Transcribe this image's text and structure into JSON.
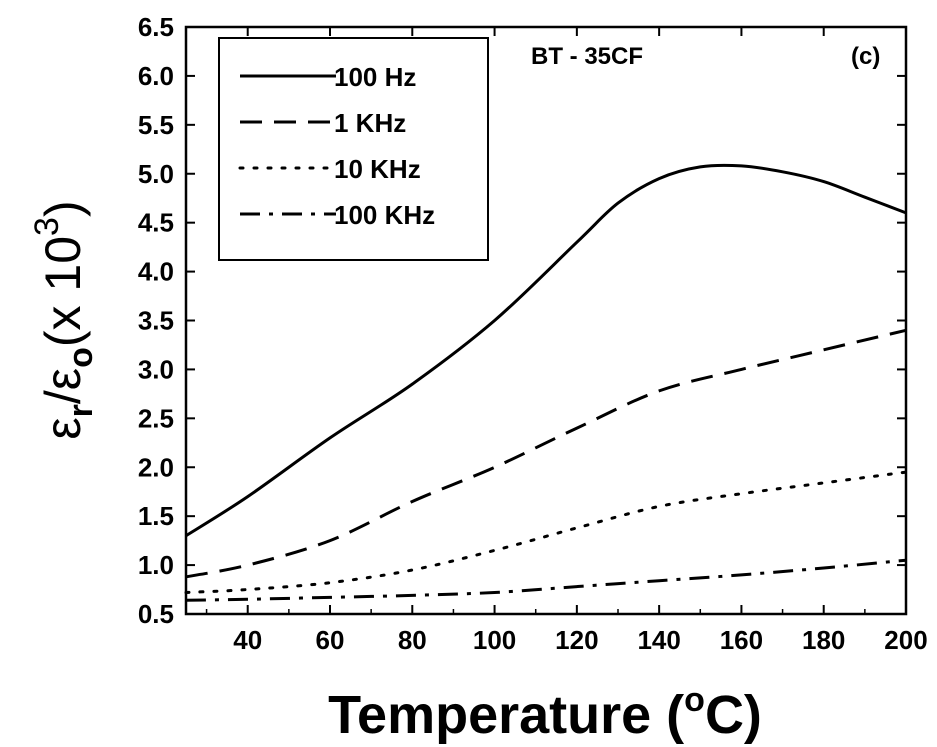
{
  "chart_data": {
    "type": "line",
    "xlabel": {
      "prefix": "Temperature (",
      "sup": "o",
      "suffix": "C)"
    },
    "ylabel": {
      "eps1": "ε",
      "sub1": "r",
      "slash": "/",
      "eps2": "ε",
      "sub2": "o",
      "rest": "(x 10",
      "sup": "3",
      "close": ")"
    },
    "xlim": [
      25,
      200
    ],
    "ylim": [
      0.5,
      6.5
    ],
    "xticks": [
      40,
      60,
      80,
      100,
      120,
      140,
      160,
      180,
      200
    ],
    "yticks": [
      "0.5",
      "1.0",
      "1.5",
      "2.0",
      "2.5",
      "3.0",
      "3.5",
      "4.0",
      "4.5",
      "5.0",
      "5.5",
      "6.0",
      "6.5"
    ],
    "annotations": {
      "sample": "BT - 35CF",
      "panel": "(c)"
    },
    "legend_position": "top-left",
    "grid": false,
    "series": [
      {
        "name": "100 Hz",
        "style": "solid",
        "x": [
          25,
          40,
          60,
          80,
          100,
          120,
          130,
          140,
          150,
          160,
          170,
          180,
          190,
          200
        ],
        "y": [
          1.3,
          1.7,
          2.3,
          2.85,
          3.5,
          4.3,
          4.7,
          4.95,
          5.07,
          5.08,
          5.02,
          4.92,
          4.76,
          4.6
        ]
      },
      {
        "name": "1 KHz",
        "style": "dashed",
        "x": [
          25,
          40,
          60,
          80,
          100,
          120,
          140,
          160,
          180,
          200
        ],
        "y": [
          0.88,
          1.0,
          1.25,
          1.65,
          2.0,
          2.4,
          2.78,
          3.0,
          3.2,
          3.4
        ]
      },
      {
        "name": "10 KHz",
        "style": "dotted",
        "x": [
          25,
          40,
          60,
          80,
          100,
          120,
          140,
          160,
          180,
          200
        ],
        "y": [
          0.72,
          0.75,
          0.82,
          0.95,
          1.15,
          1.38,
          1.6,
          1.73,
          1.84,
          1.95
        ]
      },
      {
        "name": "100 KHz",
        "style": "dashdot",
        "x": [
          25,
          40,
          60,
          80,
          100,
          120,
          140,
          160,
          180,
          200
        ],
        "y": [
          0.64,
          0.65,
          0.67,
          0.69,
          0.72,
          0.78,
          0.84,
          0.9,
          0.97,
          1.05
        ]
      }
    ]
  }
}
